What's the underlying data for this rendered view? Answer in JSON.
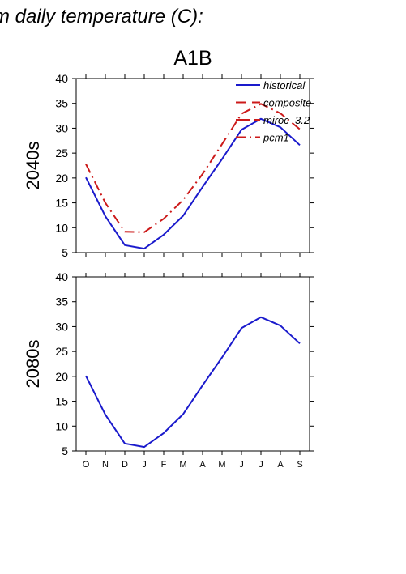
{
  "figure": {
    "title": "m daily temperature (C):",
    "scenario": "A1B"
  },
  "legend": {
    "items": [
      {
        "label": "historical",
        "color": "#1a1acc",
        "dash": "solid"
      },
      {
        "label": "composite",
        "color": "#cc1a1a",
        "dash": "dashed"
      },
      {
        "label": "miroc_3.2",
        "color": "#cc1a1a",
        "dash": "long-dash"
      },
      {
        "label": "pcm1",
        "color": "#cc1a1a",
        "dash": "dash-dot"
      }
    ]
  },
  "chart_data": [
    {
      "type": "line",
      "ylabel": "2040s",
      "xlabel": "",
      "ylim": [
        5,
        40
      ],
      "yticks": [
        5,
        10,
        15,
        20,
        25,
        30,
        35,
        40
      ],
      "categories": [
        "O",
        "N",
        "D",
        "J",
        "F",
        "M",
        "A",
        "M",
        "J",
        "J",
        "A",
        "S"
      ],
      "grid": false,
      "legend_position": "top-right",
      "series": [
        {
          "name": "historical",
          "color": "#1a1acc",
          "dash": "solid",
          "values": [
            20.1,
            12.3,
            6.5,
            5.8,
            8.6,
            12.4,
            18.2,
            23.8,
            29.7,
            31.9,
            30.2,
            26.6
          ]
        },
        {
          "name": "pcm1",
          "color": "#cc1a1a",
          "dash": "dash-dot",
          "values": [
            22.8,
            15.0,
            9.2,
            9.1,
            11.8,
            15.6,
            20.8,
            26.8,
            32.9,
            34.9,
            33.0,
            29.8
          ]
        }
      ]
    },
    {
      "type": "line",
      "ylabel": "2080s",
      "xlabel": "",
      "ylim": [
        5,
        40
      ],
      "yticks": [
        5,
        10,
        15,
        20,
        25,
        30,
        35,
        40
      ],
      "categories": [
        "O",
        "N",
        "D",
        "J",
        "F",
        "M",
        "A",
        "M",
        "J",
        "J",
        "A",
        "S"
      ],
      "grid": false,
      "series": [
        {
          "name": "historical",
          "color": "#1a1acc",
          "dash": "solid",
          "values": [
            20.1,
            12.3,
            6.5,
            5.8,
            8.6,
            12.4,
            18.2,
            23.8,
            29.7,
            31.9,
            30.2,
            26.6
          ]
        }
      ]
    }
  ]
}
